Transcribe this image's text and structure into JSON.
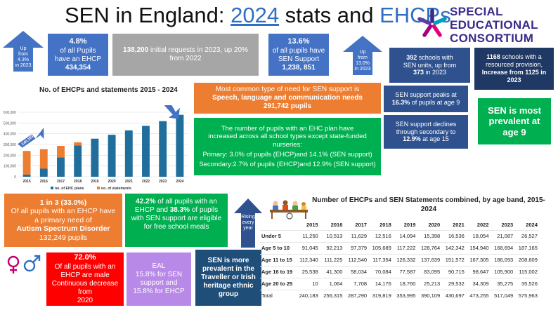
{
  "title": {
    "part1": "SEN in England: ",
    "year": "2024",
    "part2": " stats and ",
    "part3": "EHCPs"
  },
  "logo": {
    "line1": "SPECIAL",
    "line2": "EDUCATIONAL",
    "line3": "CONSORTIUM"
  },
  "arrow_ehcp": {
    "l1": "Up",
    "l2": "from",
    "l3": "4.3%",
    "l4": "in 2023"
  },
  "box_ehcp": {
    "pct": "4.8%",
    "l1": "of all Pupils",
    "l2": "have an EHCP",
    "count": "434,354"
  },
  "box_requests": {
    "num": "138,200",
    "text": " initial requests in 2023, up 20% from 2022"
  },
  "box_sen_support": {
    "pct": "13.6%",
    "l1": "of all pupils have",
    "l2": "SEN Support",
    "count": "1,238, 851"
  },
  "arrow_sen": {
    "l1": "Up",
    "l2": "from",
    "l3": "13.0%",
    "l4": "in 2023"
  },
  "box_units": {
    "num": "392",
    "l1": " schools with",
    "l2": "SEN units, up from",
    "num2": "373",
    "l3": " in 2023"
  },
  "box_resourced": {
    "num": "1168",
    "l1": " schools with a",
    "l2": "resourced provision,",
    "l3": "Increase from 1125 in",
    "l4": "2023"
  },
  "box_need": {
    "l1": "Most common type of need for SEN support is",
    "l2": "Speech, language and communication needs",
    "l3": "291,742 pupils"
  },
  "box_peaks": {
    "l1": "SEN support peaks at",
    "pct": "16.3%",
    "l2": " of pupils at age 9"
  },
  "box_declines": {
    "l1": "SEN support declines",
    "l2": "through secondary to",
    "pct": "12.9%",
    "l3": " at age 15"
  },
  "box_prevalent": {
    "l1": "SEN is most",
    "l2": "prevalent at",
    "l3": "age 9"
  },
  "box_increased": {
    "l1": "The number of pupils with an EHC plan have",
    "l2": "increased across all school types except state-funded",
    "l3": "nurseries:",
    "l4": "Primary: 3.0% of pupils (EHCP)and 14.1% (SEN support)",
    "l5": "Secondary:2.7% of pupils (EHCP)and 12.9% (SEN support)"
  },
  "box_autism": {
    "l1": "1 in 3 (33.0%)",
    "l2": "Of all pupils with an EHCP have",
    "l3": "a primary need of",
    "l4": "Autism Spectrum Disorder",
    "l5": "132,249 pupils"
  },
  "box_fsm": {
    "p1": "42.2%",
    "t1": " of all pupils with an EHCP and ",
    "p2": "38.3%",
    "t2": " of pupils with SEN support are eligible for free school meals"
  },
  "arrow_rising": {
    "l1": "Rising",
    "l2": "every",
    "l3": "year"
  },
  "box_male": {
    "pct": "72.0%",
    "l1": "Of all pupils with an",
    "l2": "EHCP are male",
    "l3": "Continuous decrease from",
    "l4": "2020"
  },
  "box_eal": {
    "l1": "EAL",
    "l2": "15.8% for SEN",
    "l3": "support and",
    "l4": "15.8% for EHCP"
  },
  "box_traveller": {
    "l1": "SEN is more",
    "l2": "prevalent in the",
    "l3": "Traveller or Irish",
    "l4": "heritage ethnic",
    "l5": "group"
  },
  "chart_data": [
    {
      "type": "bar",
      "title": "No. of EHCPs and statements 2015 - 2024",
      "categories": [
        "2015",
        "2016",
        "2017",
        "2018",
        "2019",
        "2020",
        "2021",
        "2022",
        "2023",
        "2024"
      ],
      "series": [
        {
          "name": "no. of EHC plans",
          "color": "#1f6e9c",
          "values": [
            20000,
            75000,
            180000,
            290000,
            354000,
            390000,
            431000,
            473000,
            517000,
            576000
          ]
        },
        {
          "name": "no. of statements",
          "color": "#ed7d31",
          "values": [
            220000,
            181000,
            107000,
            30000,
            0,
            0,
            0,
            0,
            0,
            0
          ]
        }
      ],
      "ylim": [
        0,
        600000
      ],
      "yticks": [
        "600,000",
        "500,000",
        "400,000",
        "300,000",
        "200,000",
        "100,000",
        "0"
      ],
      "annotations": [
        {
          "text": "240,183",
          "category": "2015"
        },
        {
          "text": "575,963",
          "category": "2024"
        },
        {
          "text": "11.4% up on 2023",
          "category": "2024"
        }
      ],
      "legend": "bottom"
    },
    {
      "type": "table",
      "title": "Number of EHCPs and SEN Statements combined, by age band, 2015-2024",
      "columns": [
        "2015",
        "2016",
        "2017",
        "2018",
        "2019",
        "2020",
        "2021",
        "2022",
        "2023",
        "2024"
      ],
      "rows": [
        {
          "label": "Under 5",
          "values": [
            "11,250",
            "10,513",
            "11,629",
            "12,516",
            "14,094",
            "15,398",
            "16,536",
            "18,054",
            "21,087",
            "26,527"
          ]
        },
        {
          "label": "Age 5 to 10",
          "values": [
            "91,045",
            "92,213",
            "97,379",
            "105,689",
            "117,222",
            "128,764",
            "142,342",
            "154,940",
            "168,694",
            "187,165"
          ]
        },
        {
          "label": "Age 11 to 15",
          "values": [
            "112,340",
            "111,225",
            "112,540",
            "117,354",
            "126,332",
            "137,639",
            "151,572",
            "167,305",
            "186,093",
            "208,609"
          ]
        },
        {
          "label": "Age 16 to 19",
          "values": [
            "25,538",
            "41,300",
            "58,034",
            "70,084",
            "77,587",
            "83,095",
            "90,715",
            "98,647",
            "105,900",
            "115,002"
          ]
        },
        {
          "label": "Age 20 to 25",
          "values": [
            "10",
            "1,064",
            "7,708",
            "14,176",
            "18,760",
            "25,213",
            "29,532",
            "34,309",
            "35,275",
            "35,526"
          ]
        },
        {
          "label": "Total",
          "values": [
            "240,183",
            "256,315",
            "287,290",
            "319,819",
            "353,995",
            "390,109",
            "430,697",
            "473,255",
            "517,049",
            "575,963"
          ]
        }
      ]
    }
  ]
}
